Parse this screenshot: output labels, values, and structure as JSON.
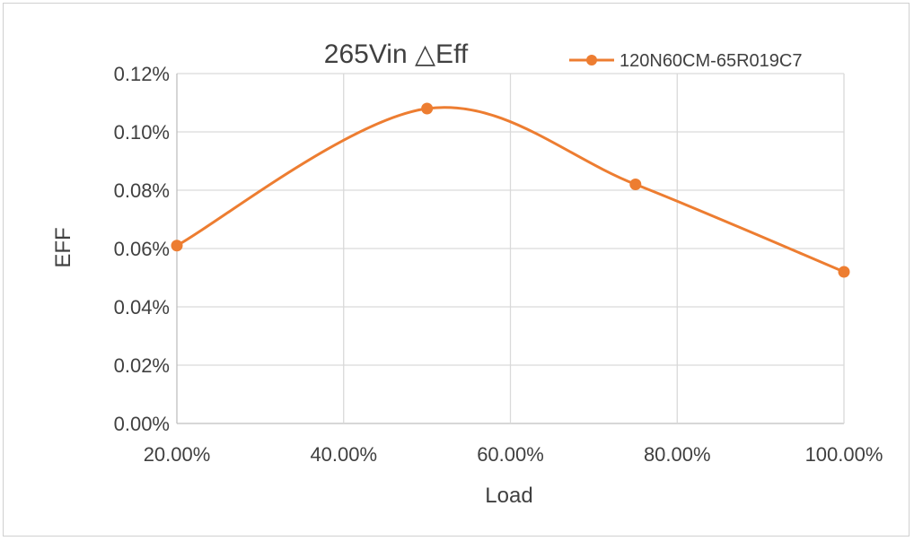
{
  "chart_data": {
    "type": "line",
    "title": "265Vin △Eff",
    "xlabel": "Load",
    "ylabel": "EFF",
    "x": [
      20,
      50,
      75,
      100
    ],
    "x_tick_labels": [
      "20.00%",
      "40.00%",
      "60.00%",
      "80.00%",
      "100.00%"
    ],
    "x_ticks": [
      20,
      40,
      60,
      80,
      100
    ],
    "xlim": [
      20,
      100
    ],
    "y_tick_labels": [
      "0.00%",
      "0.02%",
      "0.04%",
      "0.06%",
      "0.08%",
      "0.10%",
      "0.12%"
    ],
    "y_ticks": [
      0,
      0.02,
      0.04,
      0.06,
      0.08,
      0.1,
      0.12
    ],
    "ylim": [
      0,
      0.12
    ],
    "series": [
      {
        "name": "120N60CM-65R019C7",
        "values": [
          0.061,
          0.108,
          0.082,
          0.052
        ]
      }
    ],
    "grid": true,
    "smooth": true,
    "legend": "top-right",
    "colors": {
      "series": "#ED7D31",
      "grid": "#D9D9D9",
      "axis": "#BFBFBF"
    }
  }
}
